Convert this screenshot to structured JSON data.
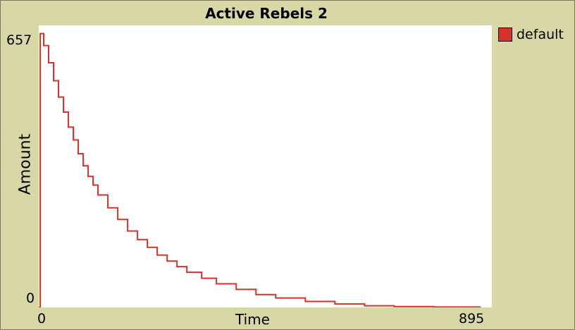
{
  "chart_data": {
    "type": "line",
    "title": "Active Rebels 2",
    "xlabel": "Time",
    "ylabel": "Amount",
    "xlim": [
      0,
      895
    ],
    "ylim": [
      0,
      657
    ],
    "x_tick_labels": [
      "0",
      "895"
    ],
    "y_tick_labels": [
      "0",
      "657"
    ],
    "legend_position": "right",
    "series": [
      {
        "name": "default",
        "color": "#d73229",
        "x": [
          0,
          3,
          10,
          20,
          30,
          40,
          50,
          60,
          70,
          80,
          90,
          100,
          110,
          120,
          140,
          160,
          180,
          200,
          220,
          240,
          260,
          280,
          300,
          330,
          360,
          400,
          440,
          480,
          540,
          600,
          660,
          720,
          800,
          895
        ],
        "y": [
          0,
          638,
          610,
          570,
          528,
          490,
          455,
          420,
          390,
          358,
          330,
          305,
          285,
          262,
          232,
          205,
          178,
          158,
          140,
          122,
          108,
          95,
          82,
          68,
          55,
          42,
          30,
          22,
          14,
          8,
          4,
          2,
          1,
          1
        ]
      }
    ]
  }
}
